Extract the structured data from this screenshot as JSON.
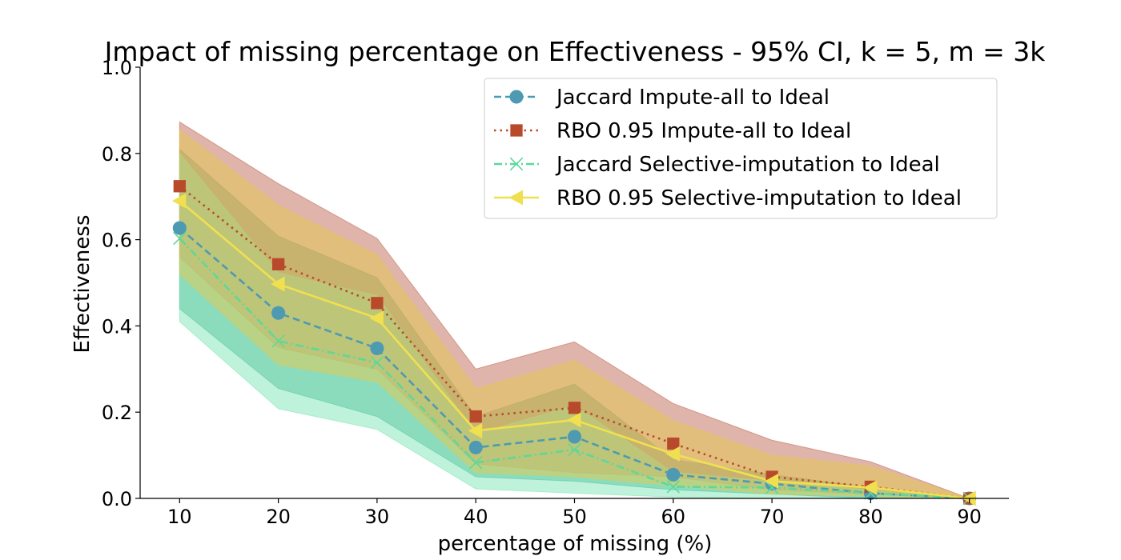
{
  "chart_data": {
    "type": "line",
    "title": "Impact of missing percentage on Effectiveness - 95% CI, k = 5, m = 3k",
    "xlabel": "percentage of missing (%)",
    "ylabel": "Effectiveness",
    "x": [
      10,
      20,
      30,
      40,
      50,
      60,
      70,
      80,
      90
    ],
    "xlim": [
      6,
      94
    ],
    "ylim": [
      0,
      1.0
    ],
    "yticks": [
      0.0,
      0.2,
      0.4,
      0.6,
      0.8,
      1.0
    ],
    "ytick_labels": [
      "0.0",
      "0.2",
      "0.4",
      "0.6",
      "0.8",
      "1.0"
    ],
    "xtick_labels": [
      "10",
      "20",
      "30",
      "40",
      "50",
      "60",
      "70",
      "80",
      "90"
    ],
    "grid": false,
    "legend_position": "top-right",
    "series": [
      {
        "name": "Jaccard Impute-all to Ideal",
        "color": "#4e9ab2",
        "line_style": "dashed",
        "marker": "circle",
        "values": [
          0.627,
          0.43,
          0.348,
          0.118,
          0.143,
          0.055,
          0.034,
          0.012,
          0.0
        ],
        "ci_lower": [
          0.44,
          0.255,
          0.19,
          0.05,
          0.04,
          0.02,
          0.01,
          0.0,
          0.0
        ],
        "ci_upper": [
          0.81,
          0.608,
          0.512,
          0.19,
          0.265,
          0.09,
          0.055,
          0.025,
          0.0
        ],
        "band_color": "#2ea88a"
      },
      {
        "name": "RBO 0.95 Impute-all to Ideal",
        "color": "#b84a2b",
        "line_style": "dotted",
        "marker": "square",
        "values": [
          0.724,
          0.543,
          0.453,
          0.19,
          0.21,
          0.127,
          0.05,
          0.027,
          0.0
        ],
        "ci_lower": [
          0.56,
          0.35,
          0.3,
          0.08,
          0.06,
          0.05,
          0.02,
          0.01,
          0.0
        ],
        "ci_upper": [
          0.873,
          0.73,
          0.603,
          0.3,
          0.363,
          0.22,
          0.135,
          0.085,
          0.0
        ],
        "band_color": "#c06a55"
      },
      {
        "name": "Jaccard Selective-imputation to Ideal",
        "color": "#5dd89a",
        "line_style": "dashdot",
        "marker": "x",
        "values": [
          0.603,
          0.365,
          0.315,
          0.083,
          0.113,
          0.027,
          0.025,
          0.012,
          0.0
        ],
        "ci_lower": [
          0.41,
          0.208,
          0.16,
          0.022,
          0.012,
          0.003,
          0.0,
          0.0,
          0.0
        ],
        "ci_upper": [
          0.8,
          0.523,
          0.47,
          0.15,
          0.215,
          0.06,
          0.04,
          0.02,
          0.0
        ],
        "band_color": "#7fe6b6"
      },
      {
        "name": "RBO 0.95 Selective-imputation to Ideal",
        "color": "#f0e050",
        "line_style": "solid",
        "marker": "triangle-left",
        "values": [
          0.69,
          0.497,
          0.418,
          0.157,
          0.182,
          0.103,
          0.04,
          0.025,
          0.0
        ],
        "ci_lower": [
          0.52,
          0.31,
          0.27,
          0.06,
          0.05,
          0.03,
          0.01,
          0.005,
          0.0
        ],
        "ci_upper": [
          0.855,
          0.68,
          0.565,
          0.255,
          0.32,
          0.18,
          0.1,
          0.075,
          0.0
        ],
        "band_color": "#e5c850"
      }
    ]
  }
}
